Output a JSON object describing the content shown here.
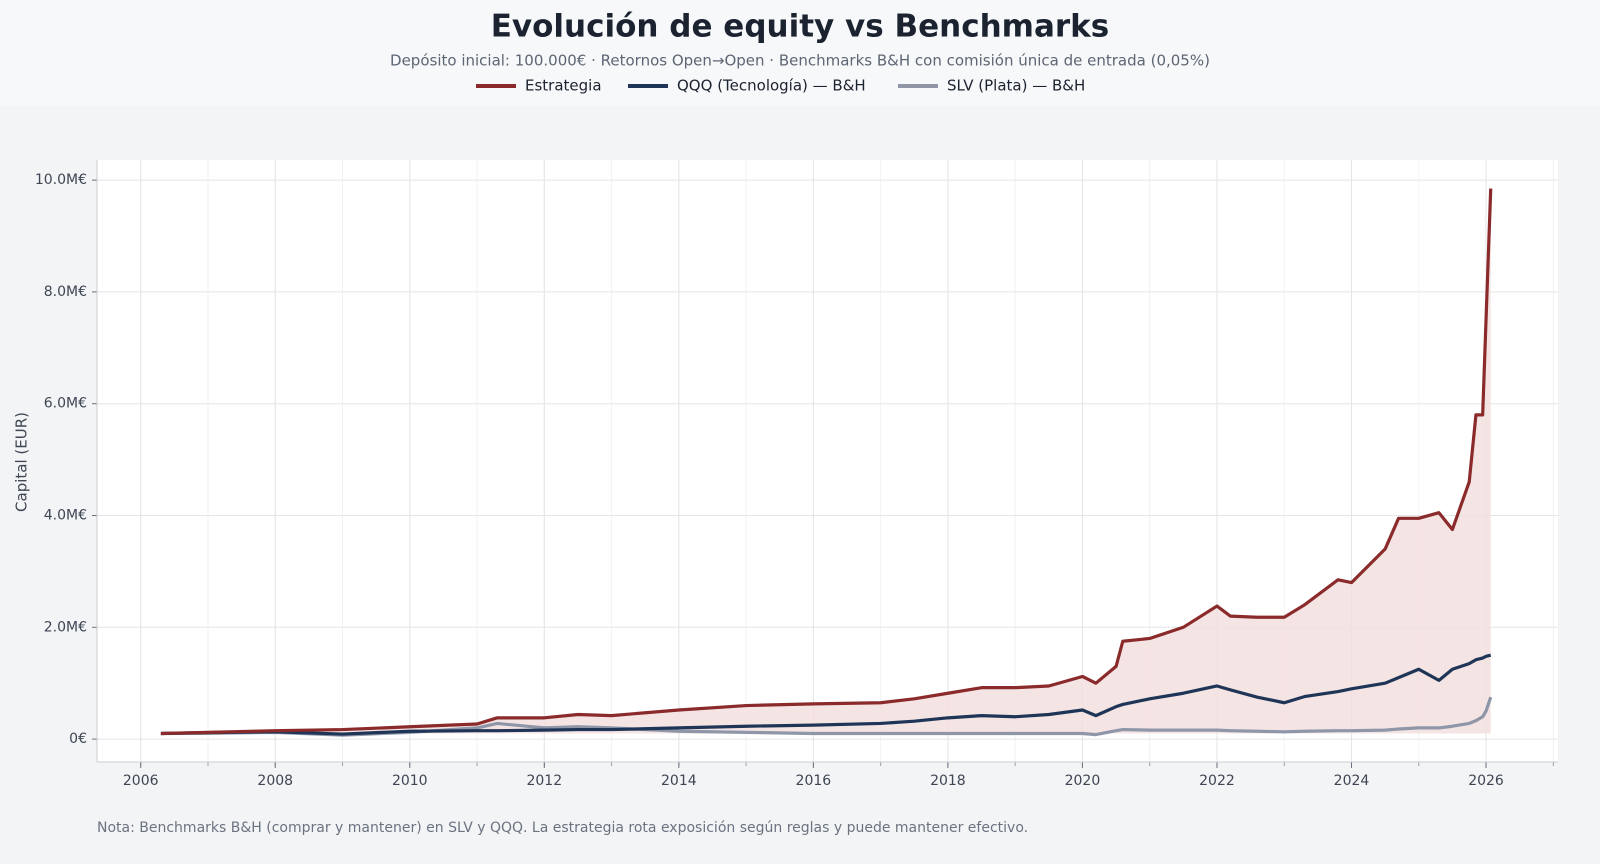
{
  "chart_data": {
    "type": "line",
    "title": "Evolución de equity vs Benchmarks",
    "subtitle": "Depósito inicial: 100.000€ · Retornos Open→Open · Benchmarks B&H con comisión única de entrada (0,05%)",
    "y_label": "Capital (EUR)",
    "note": "Nota: Benchmarks B&H (comprar y mantener) en SLV y QQQ. La estrategia rota exposición según reglas y puede mantener efectivo.",
    "grid": true,
    "x": [
      2006.3,
      2007,
      2008,
      2009,
      2010,
      2011,
      2011.3,
      2012,
      2012.5,
      2013,
      2014,
      2015,
      2016,
      2017,
      2017.5,
      2018,
      2018.5,
      2019,
      2019.5,
      2020,
      2020.2,
      2020.5,
      2020.6,
      2021,
      2021.5,
      2022,
      2022.2,
      2022.6,
      2023,
      2023.3,
      2023.8,
      2024,
      2024.5,
      2024.7,
      2025,
      2025.3,
      2025.5,
      2025.75,
      2025.85,
      2025.95,
      2026,
      2026.07
    ],
    "series": [
      {
        "name": "Estrategia",
        "color": "#8b2a2a",
        "fill": "#f3dfdf",
        "values": [
          100000,
          120000,
          150000,
          170000,
          220000,
          270000,
          380000,
          380000,
          440000,
          420000,
          520000,
          600000,
          630000,
          650000,
          720000,
          820000,
          920000,
          920000,
          950000,
          1120000,
          1000000,
          1300000,
          1750000,
          1800000,
          2000000,
          2380000,
          2200000,
          2180000,
          2180000,
          2400000,
          2850000,
          2800000,
          3400000,
          3950000,
          3950000,
          4050000,
          3750000,
          4600000,
          5800000,
          5800000,
          7500000,
          9850000
        ]
      },
      {
        "name": "QQQ (Tecnología) — B&H",
        "color": "#1f3557",
        "values": [
          100000,
          115000,
          130000,
          90000,
          140000,
          150000,
          150000,
          160000,
          170000,
          170000,
          200000,
          230000,
          250000,
          280000,
          320000,
          380000,
          420000,
          400000,
          440000,
          520000,
          420000,
          580000,
          620000,
          720000,
          820000,
          950000,
          880000,
          750000,
          650000,
          760000,
          850000,
          900000,
          1000000,
          1100000,
          1250000,
          1050000,
          1250000,
          1350000,
          1420000,
          1450000,
          1480000,
          1500000
        ]
      },
      {
        "name": "SLV (Plata) — B&H",
        "color": "#8e96a8",
        "values": [
          100000,
          105000,
          120000,
          70000,
          120000,
          200000,
          280000,
          200000,
          220000,
          200000,
          140000,
          120000,
          100000,
          100000,
          100000,
          100000,
          100000,
          100000,
          100000,
          100000,
          80000,
          150000,
          170000,
          160000,
          160000,
          160000,
          150000,
          140000,
          130000,
          140000,
          150000,
          150000,
          160000,
          180000,
          200000,
          200000,
          230000,
          280000,
          330000,
          400000,
          500000,
          750000
        ]
      }
    ],
    "xlim": [
      2005.35,
      2027.07
    ],
    "xticks": [
      2006,
      2008,
      2010,
      2012,
      2014,
      2016,
      2018,
      2020,
      2022,
      2024,
      2026
    ],
    "ylim": [
      -410000,
      10360000
    ],
    "yticks": [
      {
        "value": 0,
        "label": "0€"
      },
      {
        "value": 2000000,
        "label": "2.0M€"
      },
      {
        "value": 4000000,
        "label": "4.0M€"
      },
      {
        "value": 6000000,
        "label": "6.0M€"
      },
      {
        "value": 8000000,
        "label": "8.0M€"
      },
      {
        "value": 10000000,
        "label": "10.0M€"
      }
    ]
  }
}
